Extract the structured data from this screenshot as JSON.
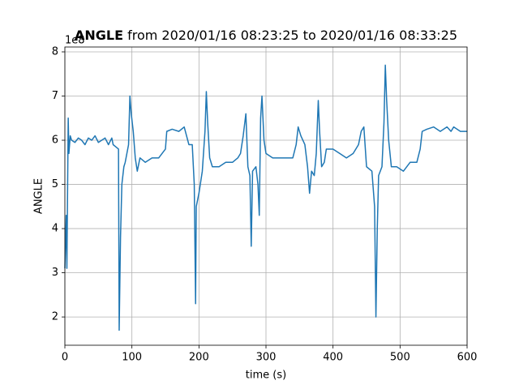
{
  "chart_data": {
    "type": "line",
    "title": {
      "bold": "ANGLE",
      "rest": "from 2020/01/16 08:23:25 to 2020/01/16 08:33:25"
    },
    "offset_label": "1e8",
    "xlabel": "time (s)",
    "ylabel": "ANGLE",
    "xlim": [
      0,
      600
    ],
    "ylim": [
      1.36,
      8.11
    ],
    "xticks": [
      0,
      100,
      200,
      300,
      400,
      500,
      600
    ],
    "yticks": [
      2,
      3,
      4,
      5,
      6,
      7,
      8
    ],
    "grid": true,
    "series": [
      {
        "name": "ANGLE",
        "color": "#1f77b4",
        "x": [
          0,
          2,
          3,
          5,
          6,
          8,
          10,
          15,
          20,
          25,
          30,
          35,
          40,
          45,
          50,
          55,
          60,
          65,
          70,
          72,
          76,
          80,
          81,
          83,
          85,
          88,
          90,
          95,
          97,
          99,
          102,
          105,
          108,
          112,
          120,
          130,
          140,
          150,
          152,
          160,
          170,
          178,
          185,
          190,
          193,
          195,
          196,
          200,
          205,
          209,
          211,
          213,
          216,
          220,
          230,
          240,
          250,
          258,
          262,
          266,
          270,
          273,
          276,
          278,
          280,
          285,
          288,
          290,
          292,
          294,
          297,
          300,
          310,
          320,
          330,
          340,
          345,
          348,
          352,
          358,
          362,
          365,
          368,
          372,
          375,
          378,
          380,
          383,
          387,
          390,
          400,
          410,
          420,
          430,
          438,
          442,
          446,
          450,
          458,
          462,
          464,
          466,
          468,
          473,
          476,
          478,
          480,
          483,
          487,
          495,
          505,
          515,
          525,
          530,
          533,
          540,
          550,
          560,
          570,
          576,
          580,
          590,
          600
        ],
        "values": [
          3.1,
          4.3,
          3.1,
          6.5,
          5.7,
          6.1,
          6.0,
          5.95,
          6.05,
          6.0,
          5.9,
          6.05,
          6.0,
          6.1,
          5.95,
          6.0,
          6.05,
          5.9,
          6.05,
          5.9,
          5.85,
          5.8,
          1.7,
          3.8,
          5.0,
          5.4,
          5.5,
          5.9,
          7.0,
          6.6,
          6.2,
          5.6,
          5.3,
          5.6,
          5.5,
          5.6,
          5.6,
          5.8,
          6.2,
          6.25,
          6.2,
          6.3,
          5.9,
          5.9,
          5.0,
          2.3,
          4.5,
          4.8,
          5.3,
          6.2,
          7.1,
          6.4,
          5.6,
          5.4,
          5.4,
          5.5,
          5.5,
          5.6,
          5.7,
          6.1,
          6.6,
          5.4,
          5.2,
          3.6,
          5.3,
          5.4,
          5.0,
          4.3,
          6.5,
          7.0,
          6.0,
          5.7,
          5.6,
          5.6,
          5.6,
          5.6,
          5.9,
          6.3,
          6.1,
          5.9,
          5.4,
          4.8,
          5.3,
          5.2,
          5.7,
          6.9,
          6.2,
          5.4,
          5.5,
          5.8,
          5.8,
          5.7,
          5.6,
          5.7,
          5.9,
          6.2,
          6.3,
          5.4,
          5.3,
          4.5,
          2.0,
          4.0,
          5.2,
          5.4,
          6.4,
          7.7,
          6.9,
          6.0,
          5.4,
          5.4,
          5.3,
          5.5,
          5.5,
          5.8,
          6.2,
          6.25,
          6.3,
          6.2,
          6.3,
          6.2,
          6.3,
          6.2,
          6.2
        ]
      }
    ]
  }
}
